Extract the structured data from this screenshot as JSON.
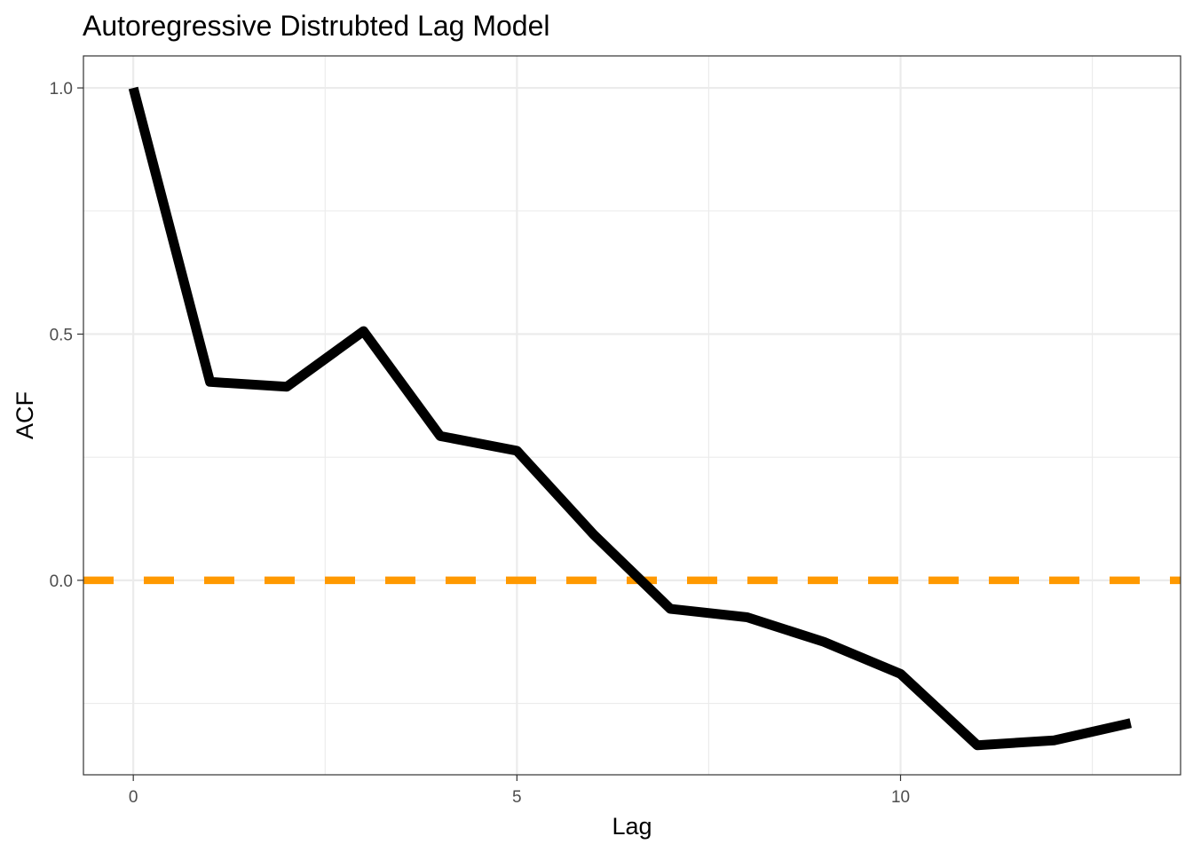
{
  "chart_data": {
    "type": "line",
    "title": "Autoregressive Distrubted Lag Model",
    "xlabel": "Lag",
    "ylabel": "ACF",
    "xlim": [
      -0.65,
      13.65
    ],
    "ylim": [
      -0.395,
      1.065
    ],
    "x_ticks": [
      0,
      5,
      10
    ],
    "x_tick_labels": [
      "0",
      "5",
      "10"
    ],
    "y_ticks": [
      0.0,
      0.5,
      1.0
    ],
    "y_tick_labels": [
      "0.0",
      "0.5",
      "1.0"
    ],
    "x_minor": [
      2.5,
      7.5,
      12.5
    ],
    "y_minor": [
      -0.25,
      0.25,
      0.75
    ],
    "grid": true,
    "legend": "none",
    "series": [
      {
        "x": [
          0,
          1,
          2,
          3,
          4,
          5,
          6,
          7,
          8,
          9,
          10,
          11,
          12,
          13
        ],
        "values": [
          1.0,
          0.403,
          0.393,
          0.506,
          0.293,
          0.263,
          0.093,
          -0.058,
          -0.075,
          -0.125,
          -0.19,
          -0.335,
          -0.325,
          -0.29
        ],
        "color": "#000000"
      }
    ],
    "reference_line": {
      "y": 0.0,
      "color": "#ff9900",
      "style": "dashed"
    }
  }
}
